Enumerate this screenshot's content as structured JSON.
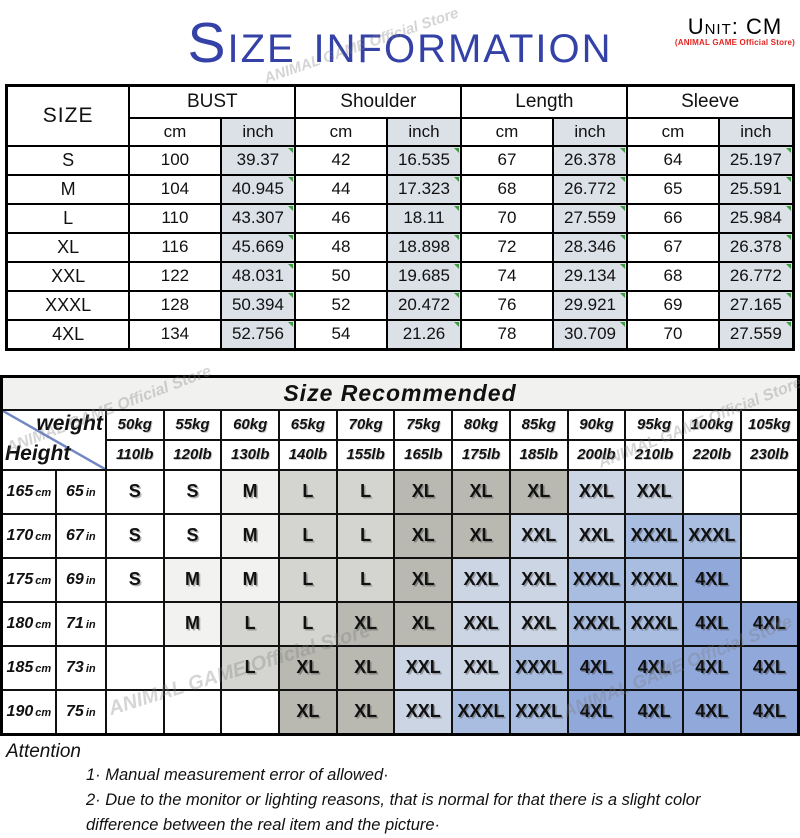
{
  "header": {
    "title": "Size information",
    "unit_label": "Unit: CM",
    "store_label": "(ANIMAL GAME Official Store)"
  },
  "watermark_text": "ANIMAL GAME Official Store",
  "size_table": {
    "corner_label": "SIZE",
    "group_headers": [
      "BUST",
      "Shoulder",
      "Length",
      "Sleeve"
    ],
    "unit_cm": "cm",
    "unit_inch": "inch",
    "rows": [
      {
        "size": "S",
        "values": [
          "100",
          "39.37",
          "42",
          "16.535",
          "67",
          "26.378",
          "64",
          "25.197"
        ]
      },
      {
        "size": "M",
        "values": [
          "104",
          "40.945",
          "44",
          "17.323",
          "68",
          "26.772",
          "65",
          "25.591"
        ]
      },
      {
        "size": "L",
        "values": [
          "110",
          "43.307",
          "46",
          "18.11",
          "70",
          "27.559",
          "66",
          "25.984"
        ]
      },
      {
        "size": "XL",
        "values": [
          "116",
          "45.669",
          "48",
          "18.898",
          "72",
          "28.346",
          "67",
          "26.378"
        ]
      },
      {
        "size": "XXL",
        "values": [
          "122",
          "48.031",
          "50",
          "19.685",
          "74",
          "29.134",
          "68",
          "26.772"
        ]
      },
      {
        "size": "XXXL",
        "values": [
          "128",
          "50.394",
          "52",
          "20.472",
          "76",
          "29.921",
          "69",
          "27.165"
        ]
      },
      {
        "size": "4XL",
        "values": [
          "134",
          "52.756",
          "54",
          "21.26",
          "78",
          "30.709",
          "70",
          "27.559"
        ]
      }
    ]
  },
  "recommend_table": {
    "title": "Size Recommended",
    "corner_weight_label": "weight",
    "corner_height_label": "Height",
    "weights_kg": [
      "50kg",
      "55kg",
      "60kg",
      "65kg",
      "70kg",
      "75kg",
      "80kg",
      "85kg",
      "90kg",
      "95kg",
      "100kg",
      "105kg"
    ],
    "weights_lb": [
      "110lb",
      "120lb",
      "130lb",
      "140lb",
      "155lb",
      "165lb",
      "175lb",
      "185lb",
      "200lb",
      "210lb",
      "220lb",
      "230lb"
    ],
    "rows": [
      {
        "height_cm": "165",
        "height_cm_unit": "cm",
        "height_in": "65",
        "height_in_unit": "in",
        "cells": [
          "S",
          "S",
          "M",
          "L",
          "L",
          "XL",
          "XL",
          "XL",
          "XXL",
          "XXL",
          "",
          ""
        ]
      },
      {
        "height_cm": "170",
        "height_cm_unit": "cm",
        "height_in": "67",
        "height_in_unit": "in",
        "cells": [
          "S",
          "S",
          "M",
          "L",
          "L",
          "XL",
          "XL",
          "XXL",
          "XXL",
          "XXXL",
          "XXXL",
          ""
        ]
      },
      {
        "height_cm": "175",
        "height_cm_unit": "cm",
        "height_in": "69",
        "height_in_unit": "in",
        "cells": [
          "S",
          "M",
          "M",
          "L",
          "L",
          "XL",
          "XXL",
          "XXL",
          "XXXL",
          "XXXL",
          "4XL",
          ""
        ]
      },
      {
        "height_cm": "180",
        "height_cm_unit": "cm",
        "height_in": "71",
        "height_in_unit": "in",
        "cells": [
          "",
          "M",
          "L",
          "L",
          "XL",
          "XL",
          "XXL",
          "XXL",
          "XXXL",
          "XXXL",
          "4XL",
          "4XL"
        ]
      },
      {
        "height_cm": "185",
        "height_cm_unit": "cm",
        "height_in": "73",
        "height_in_unit": "in",
        "cells": [
          "",
          "",
          "L",
          "XL",
          "XL",
          "XXL",
          "XXL",
          "XXXL",
          "4XL",
          "4XL",
          "4XL",
          "4XL"
        ]
      },
      {
        "height_cm": "190",
        "height_cm_unit": "cm",
        "height_in": "75",
        "height_in_unit": "in",
        "cells": [
          "",
          "",
          "",
          "XL",
          "XL",
          "XXL",
          "XXXL",
          "XXXL",
          "4XL",
          "4XL",
          "4XL",
          "4XL"
        ]
      }
    ],
    "cell_colors": {
      "S": "#ffffff",
      "M": "#f2f2f0",
      "L": "#d4d4d0",
      "XL": "#b9b9b1",
      "XXL": "#ccd5e3",
      "XXXL": "#a9bde1",
      "4XL": "#91a8da",
      "": "#ffffff"
    }
  },
  "attention": {
    "title": "Attention",
    "notes": [
      "1· Manual measurement error of allowed·",
      "2·  Due to the monitor or lighting reasons, that is normal for that there is a slight color",
      "difference between the real item and the picture·"
    ]
  },
  "colors": {
    "title_blue": "#3442a8",
    "store_red": "#e52420",
    "inch_column_bg": "#dce0e7",
    "recommend_title_bg": "#f1f1ef",
    "diagonal_line_blue": "#7288c5",
    "flag_triangle_green": "#3f9b41",
    "border_black": "#000000"
  }
}
